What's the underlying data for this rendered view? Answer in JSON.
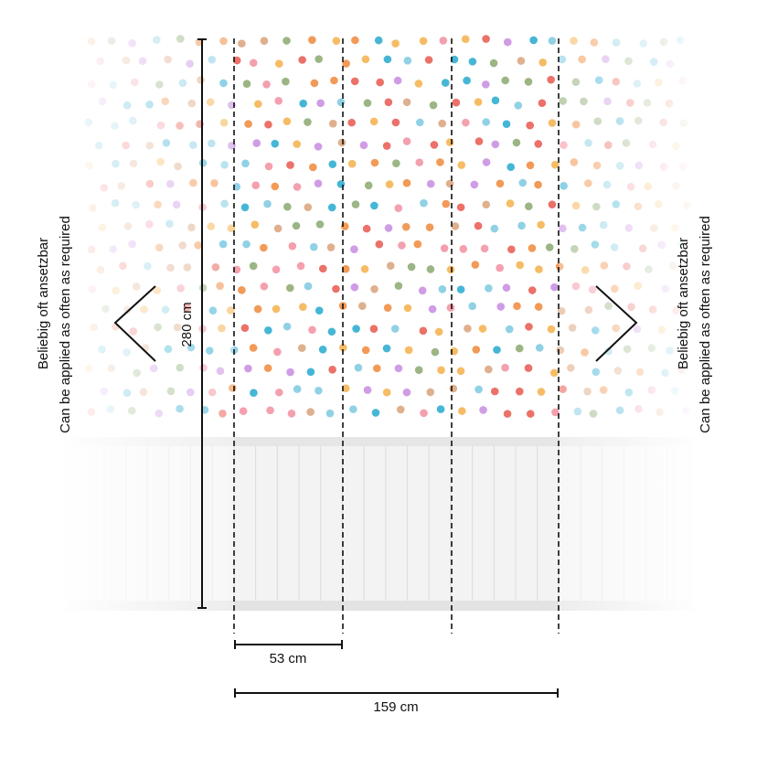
{
  "dimensions": {
    "height": "280 cm",
    "panel_width": "53 cm",
    "total_width": "159 cm"
  },
  "left_note": {
    "de": "Beliebig oft ansetzbar",
    "en": "Can be applied as often as required"
  },
  "right_note": {
    "de": "Beliebig oft ansetzbar",
    "en": "Can be applied as often as required"
  }
}
